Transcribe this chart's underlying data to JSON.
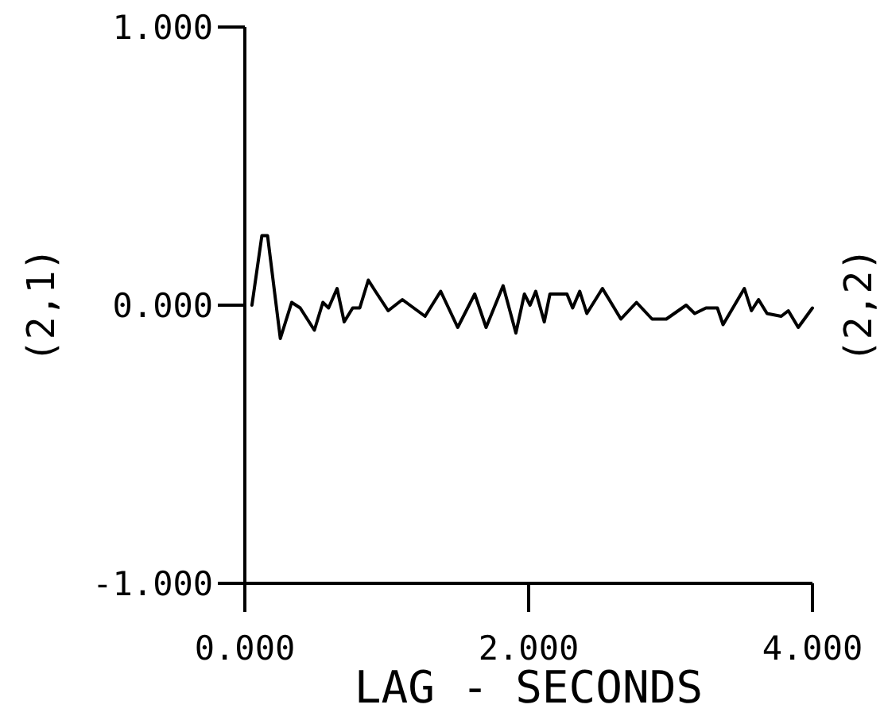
{
  "chart_data": {
    "type": "line",
    "xlabel": "LAG - SECONDS",
    "ylabel": "(2,1)",
    "annotations": [
      "(2,2)"
    ],
    "xlim": [
      0,
      4
    ],
    "xticks": [
      {
        "value": 0,
        "label": "0.000"
      },
      {
        "value": 2,
        "label": "2.000"
      },
      {
        "value": 4,
        "label": "4.000"
      }
    ],
    "ylim": [
      -1,
      1
    ],
    "yticks": [
      {
        "value": -1,
        "label": "-1.000"
      },
      {
        "value": 0,
        "label": "0.000"
      },
      {
        "value": 1,
        "label": "1.000"
      }
    ],
    "series": [
      {
        "color": "#000000",
        "x": [
          0.05,
          0.12,
          0.16,
          0.25,
          0.33,
          0.39,
          0.49,
          0.55,
          0.59,
          0.65,
          0.7,
          0.76,
          0.81,
          0.87,
          0.92,
          1.01,
          1.11,
          1.27,
          1.38,
          1.5,
          1.62,
          1.7,
          1.82,
          1.91,
          1.97,
          2.01,
          2.05,
          2.11,
          2.15,
          2.27,
          2.31,
          2.36,
          2.41,
          2.52,
          2.65,
          2.76,
          2.87,
          2.97,
          3.11,
          3.17,
          3.25,
          3.33,
          3.37,
          3.52,
          3.57,
          3.62,
          3.68,
          3.78,
          3.83,
          3.9,
          4.0
        ],
        "values": [
          0.0,
          0.25,
          0.25,
          -0.12,
          0.01,
          -0.01,
          -0.09,
          0.01,
          -0.01,
          0.06,
          -0.06,
          -0.01,
          -0.01,
          0.09,
          0.05,
          -0.02,
          0.02,
          -0.04,
          0.05,
          -0.08,
          0.04,
          -0.08,
          0.07,
          -0.1,
          0.04,
          0.0,
          0.05,
          -0.06,
          0.04,
          0.04,
          -0.01,
          0.05,
          -0.03,
          0.06,
          -0.05,
          0.01,
          -0.05,
          -0.05,
          0.0,
          -0.03,
          -0.01,
          -0.01,
          -0.07,
          0.06,
          -0.02,
          0.02,
          -0.03,
          -0.04,
          -0.02,
          -0.08,
          -0.01
        ]
      }
    ]
  }
}
